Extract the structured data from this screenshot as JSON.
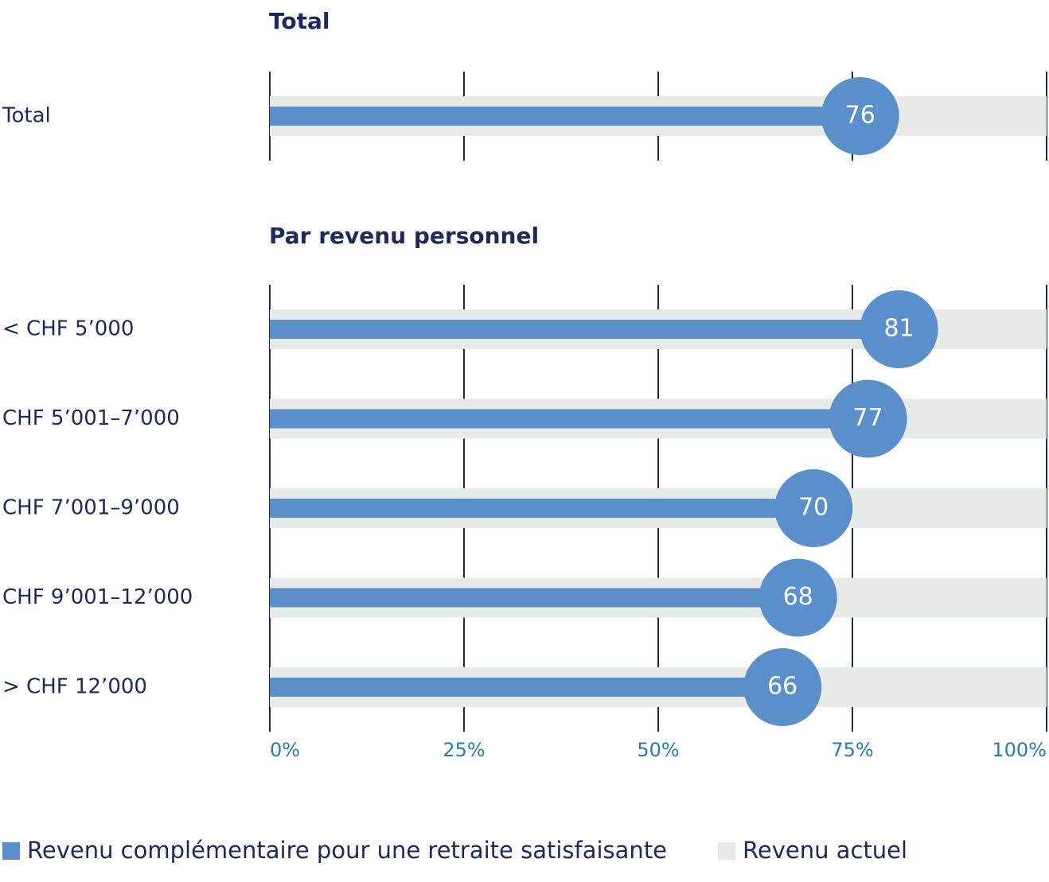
{
  "chart_data": [
    {
      "type": "bar",
      "title": "Total",
      "categories": [
        "Total"
      ],
      "series": [
        {
          "color": "#5b8fc9",
          "values": [
            76
          ]
        },
        {
          "color": "#e6ebe8",
          "values": [
            100
          ]
        }
      ],
      "xlim": [
        0,
        100
      ],
      "xticks": [
        0,
        25,
        50,
        75,
        100
      ]
    },
    {
      "type": "bar",
      "title": "Par revenu personnel",
      "categories": [
        "< CHF 5’000",
        "CHF 5’001–7’000",
        "CHF 7’001–9’000",
        "CHF 9’001–12’000",
        "> CHF 12’000"
      ],
      "series": [
        {
          "name": "Revenu complémentaire pour une retraite satisfaisante",
          "color": "#5b8fc9",
          "values": [
            81,
            77,
            70,
            68,
            66
          ]
        },
        {
          "name": "Revenu actuel",
          "color": "#e6ebe8",
          "values": [
            100,
            100,
            100,
            100,
            100
          ]
        }
      ],
      "xlim": [
        0,
        100
      ],
      "xticks": [
        {
          "value": 0,
          "label": "0%"
        },
        {
          "value": 25,
          "label": "25%"
        },
        {
          "value": 50,
          "label": "50%"
        },
        {
          "value": 75,
          "label": "75%"
        },
        {
          "value": 100,
          "label": "100%"
        }
      ]
    }
  ]
}
